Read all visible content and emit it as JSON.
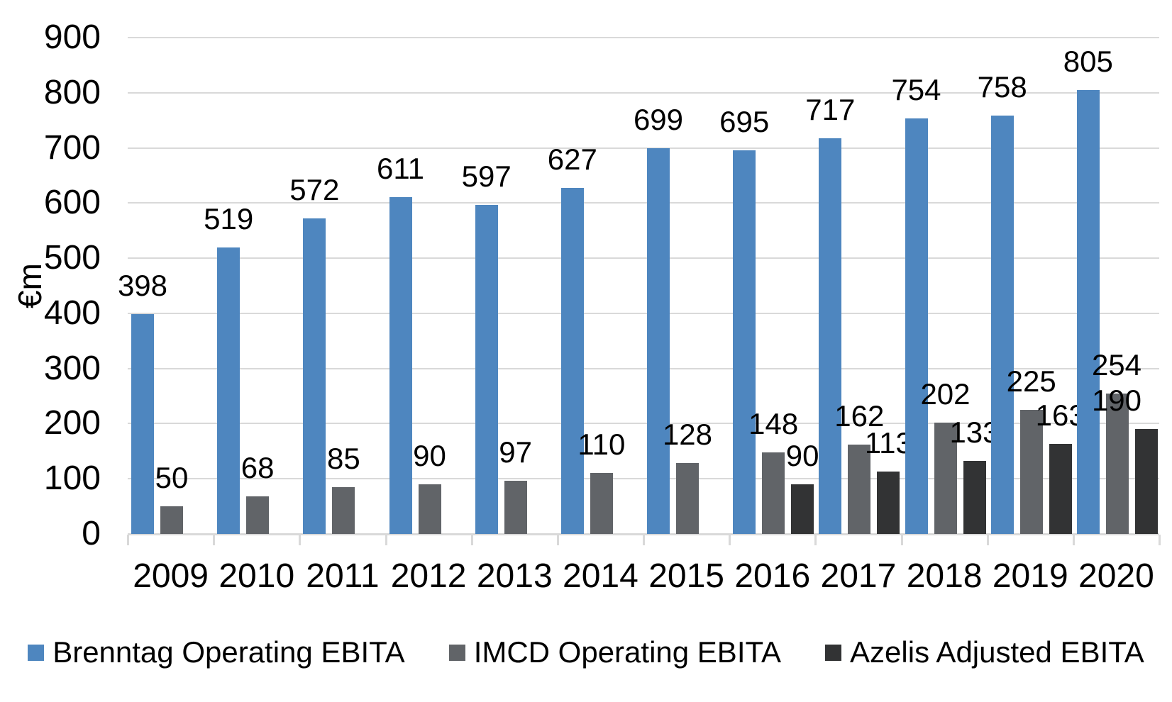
{
  "chart_data": {
    "type": "bar",
    "title": "",
    "ylabel": "€m",
    "xlabel": "",
    "ylim": [
      0,
      900
    ],
    "ytick_step": 100,
    "grid": true,
    "legend_position": "bottom",
    "categories": [
      "2009",
      "2010",
      "2011",
      "2012",
      "2013",
      "2014",
      "2015",
      "2016",
      "2017",
      "2018",
      "2019",
      "2020"
    ],
    "series": [
      {
        "name": "Brenntag Operating EBITA",
        "color": "#4e86bf",
        "values": [
          398,
          519,
          572,
          611,
          597,
          627,
          699,
          695,
          717,
          754,
          758,
          805
        ]
      },
      {
        "name": "IMCD Operating EBITA",
        "color": "#616468",
        "values": [
          50,
          68,
          85,
          90,
          97,
          110,
          128,
          148,
          162,
          202,
          225,
          254
        ]
      },
      {
        "name": "Azelis Adjusted EBITA",
        "color": "#323334",
        "values": [
          null,
          null,
          null,
          null,
          null,
          null,
          null,
          90,
          113,
          133,
          163,
          190
        ]
      }
    ],
    "colors": {
      "gridline": "#d9d9d9",
      "axis_line": "#d9d9d9",
      "label_text": "#000000"
    }
  }
}
